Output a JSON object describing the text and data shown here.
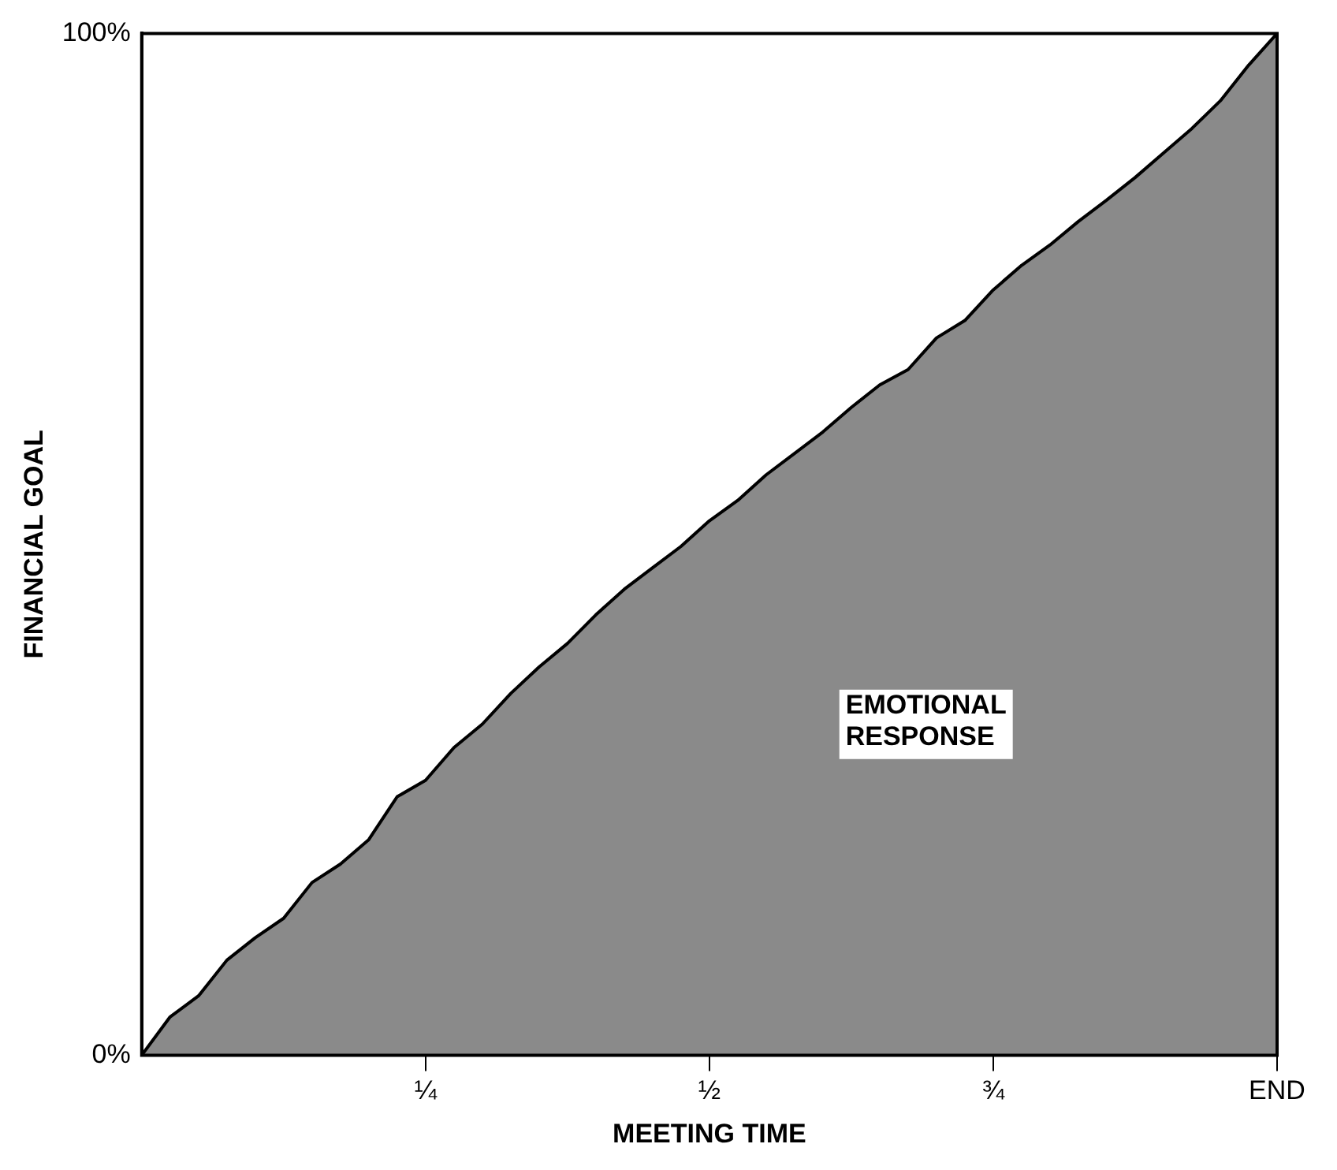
{
  "chart_data": {
    "type": "area",
    "xlabel": "MEETING TIME",
    "ylabel": "FINANCIAL GOAL",
    "categories": [
      null,
      null,
      null,
      null,
      null,
      null,
      null,
      null,
      null,
      null,
      "¼",
      null,
      null,
      null,
      null,
      null,
      null,
      null,
      null,
      null,
      "½",
      null,
      null,
      null,
      null,
      null,
      null,
      null,
      null,
      null,
      "¾",
      null,
      null,
      null,
      null,
      null,
      null,
      null,
      null,
      null,
      "END"
    ],
    "ylim": [
      0,
      100
    ],
    "yticks": [
      {
        "value": 0,
        "label": "0%"
      },
      {
        "value": 100,
        "label": "100%"
      }
    ],
    "grid": false,
    "legend": false,
    "series": [
      {
        "name": "EMOTIONAL RESPONSE",
        "color": "#8a8a8a",
        "values": [
          0,
          3.75,
          5.8,
          9.3,
          11.5,
          13.4,
          16.9,
          18.7,
          21.1,
          25.3,
          26.9,
          30.1,
          32.4,
          35.4,
          38.0,
          40.3,
          43.1,
          45.6,
          47.7,
          49.8,
          52.3,
          54.3,
          56.8,
          58.9,
          61.0,
          63.4,
          65.6,
          67.1,
          70.2,
          71.9,
          74.9,
          77.3,
          79.3,
          81.6,
          83.7,
          85.9,
          88.3,
          90.7,
          93.4,
          96.9,
          100
        ]
      }
    ]
  }
}
